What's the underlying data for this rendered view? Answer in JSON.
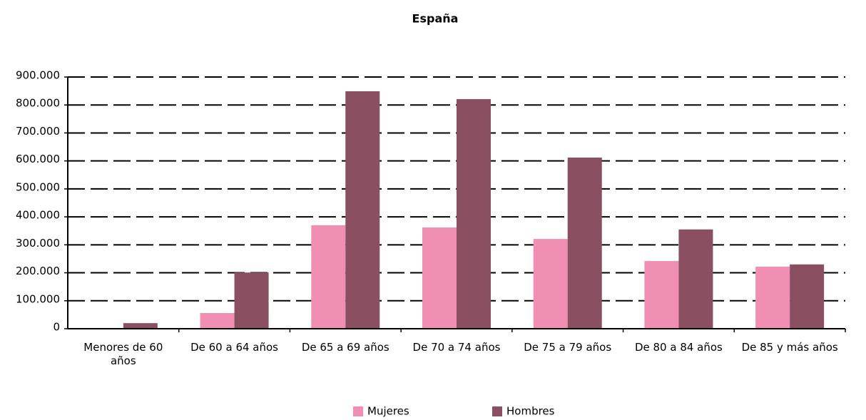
{
  "chart_data": {
    "type": "bar",
    "title": "España",
    "categories": [
      "Menores de 60 años",
      "De 60 a 64 años",
      "De 65 a 69 años",
      "De 70 a 74 años",
      "De 75 a 79 años",
      "De 80 a 84 años",
      "De 85 y más años"
    ],
    "series": [
      {
        "name": "Mujeres",
        "color": "#f08fb3",
        "values": [
          0,
          56000,
          370000,
          362000,
          321000,
          242000,
          222000
        ]
      },
      {
        "name": "Hombres",
        "color": "#8a4f60",
        "values": [
          20000,
          201000,
          849000,
          821000,
          612000,
          355000,
          230000
        ]
      }
    ],
    "ylim": [
      0,
      900000
    ],
    "yticks": [
      0,
      {
        "value": 100000,
        "label": "100.000"
      },
      {
        "value": 200000,
        "label": "200.000"
      },
      {
        "value": 300000,
        "label": "300.000"
      },
      {
        "value": 400000,
        "label": "400.000"
      },
      {
        "value": 500000,
        "label": "500.000"
      },
      {
        "value": 600000,
        "label": "600.000"
      },
      {
        "value": 700000,
        "label": "700.000"
      },
      {
        "value": 800000,
        "label": "800.000"
      },
      {
        "value": 900000,
        "label": "900.000"
      }
    ],
    "grid": true,
    "legend": "bottom"
  }
}
